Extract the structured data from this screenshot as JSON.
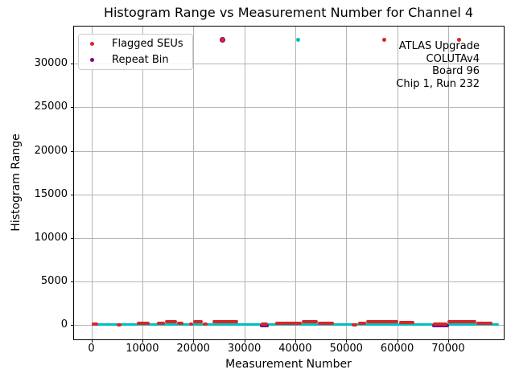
{
  "chart_data": {
    "type": "scatter",
    "title": "Histogram Range vs Measurement Number for Channel 4",
    "xlabel": "Measurement Number",
    "ylabel": "Histogram Range",
    "x_ticks": [
      0,
      10000,
      20000,
      30000,
      40000,
      50000,
      60000,
      70000
    ],
    "y_ticks": [
      0,
      5000,
      10000,
      15000,
      20000,
      25000,
      30000
    ],
    "xlim": [
      -3400,
      80900
    ],
    "ylim": [
      -1700,
      34300
    ],
    "grid": true,
    "colors": {
      "measurement": "#00bfbf",
      "flagged": "#d62728",
      "repeat": "#800080",
      "grid": "#b4b4b4",
      "text": "#000000"
    },
    "legend": {
      "position": "upper left",
      "entries": [
        {
          "label": "Flagged SEUs",
          "color": "#d62728"
        },
        {
          "label": "Repeat Bin",
          "color": "#800080"
        }
      ]
    },
    "annotation": {
      "align": "right",
      "lines": [
        "ATLAS Upgrade",
        "COLUTAv4",
        "Board 96",
        "Chip 1, Run 232"
      ]
    },
    "series": {
      "baseline": {
        "name": "measurements",
        "x_start": 0,
        "x_end": 80000,
        "y": 0
      },
      "flagged_segments": [
        [
          0,
          1400,
          100
        ],
        [
          4950,
          5950,
          0
        ],
        [
          8900,
          11450,
          150
        ],
        [
          12900,
          14400,
          150
        ],
        [
          14400,
          16800,
          300
        ],
        [
          16800,
          18100,
          150
        ],
        [
          19200,
          20000,
          100
        ],
        [
          20000,
          21900,
          300
        ],
        [
          21900,
          22800,
          100
        ],
        [
          23800,
          28800,
          300
        ],
        [
          33250,
          34650,
          50
        ],
        [
          36100,
          41300,
          150
        ],
        [
          41300,
          44500,
          300
        ],
        [
          44500,
          47600,
          150
        ],
        [
          51100,
          52100,
          0
        ],
        [
          52400,
          53900,
          150
        ],
        [
          53900,
          60300,
          350
        ],
        [
          60300,
          63400,
          200
        ],
        [
          67000,
          69900,
          100
        ],
        [
          69900,
          75500,
          300
        ],
        [
          75500,
          78700,
          150
        ]
      ],
      "repeat_segments": [
        [
          33100,
          34800,
          -100
        ],
        [
          66800,
          70200,
          -150
        ]
      ],
      "outlier_points": [
        {
          "x": 25650,
          "y": 32767,
          "series": "repeat",
          "size": 7
        },
        {
          "x": 25650,
          "y": 32767,
          "series": "flagged",
          "size": 5
        },
        {
          "x": 40640,
          "y": 32767,
          "series": "measurement",
          "size": 5
        },
        {
          "x": 57530,
          "y": 32767,
          "series": "flagged",
          "size": 5
        },
        {
          "x": 72060,
          "y": 32767,
          "series": "flagged",
          "size": 5
        }
      ]
    }
  }
}
